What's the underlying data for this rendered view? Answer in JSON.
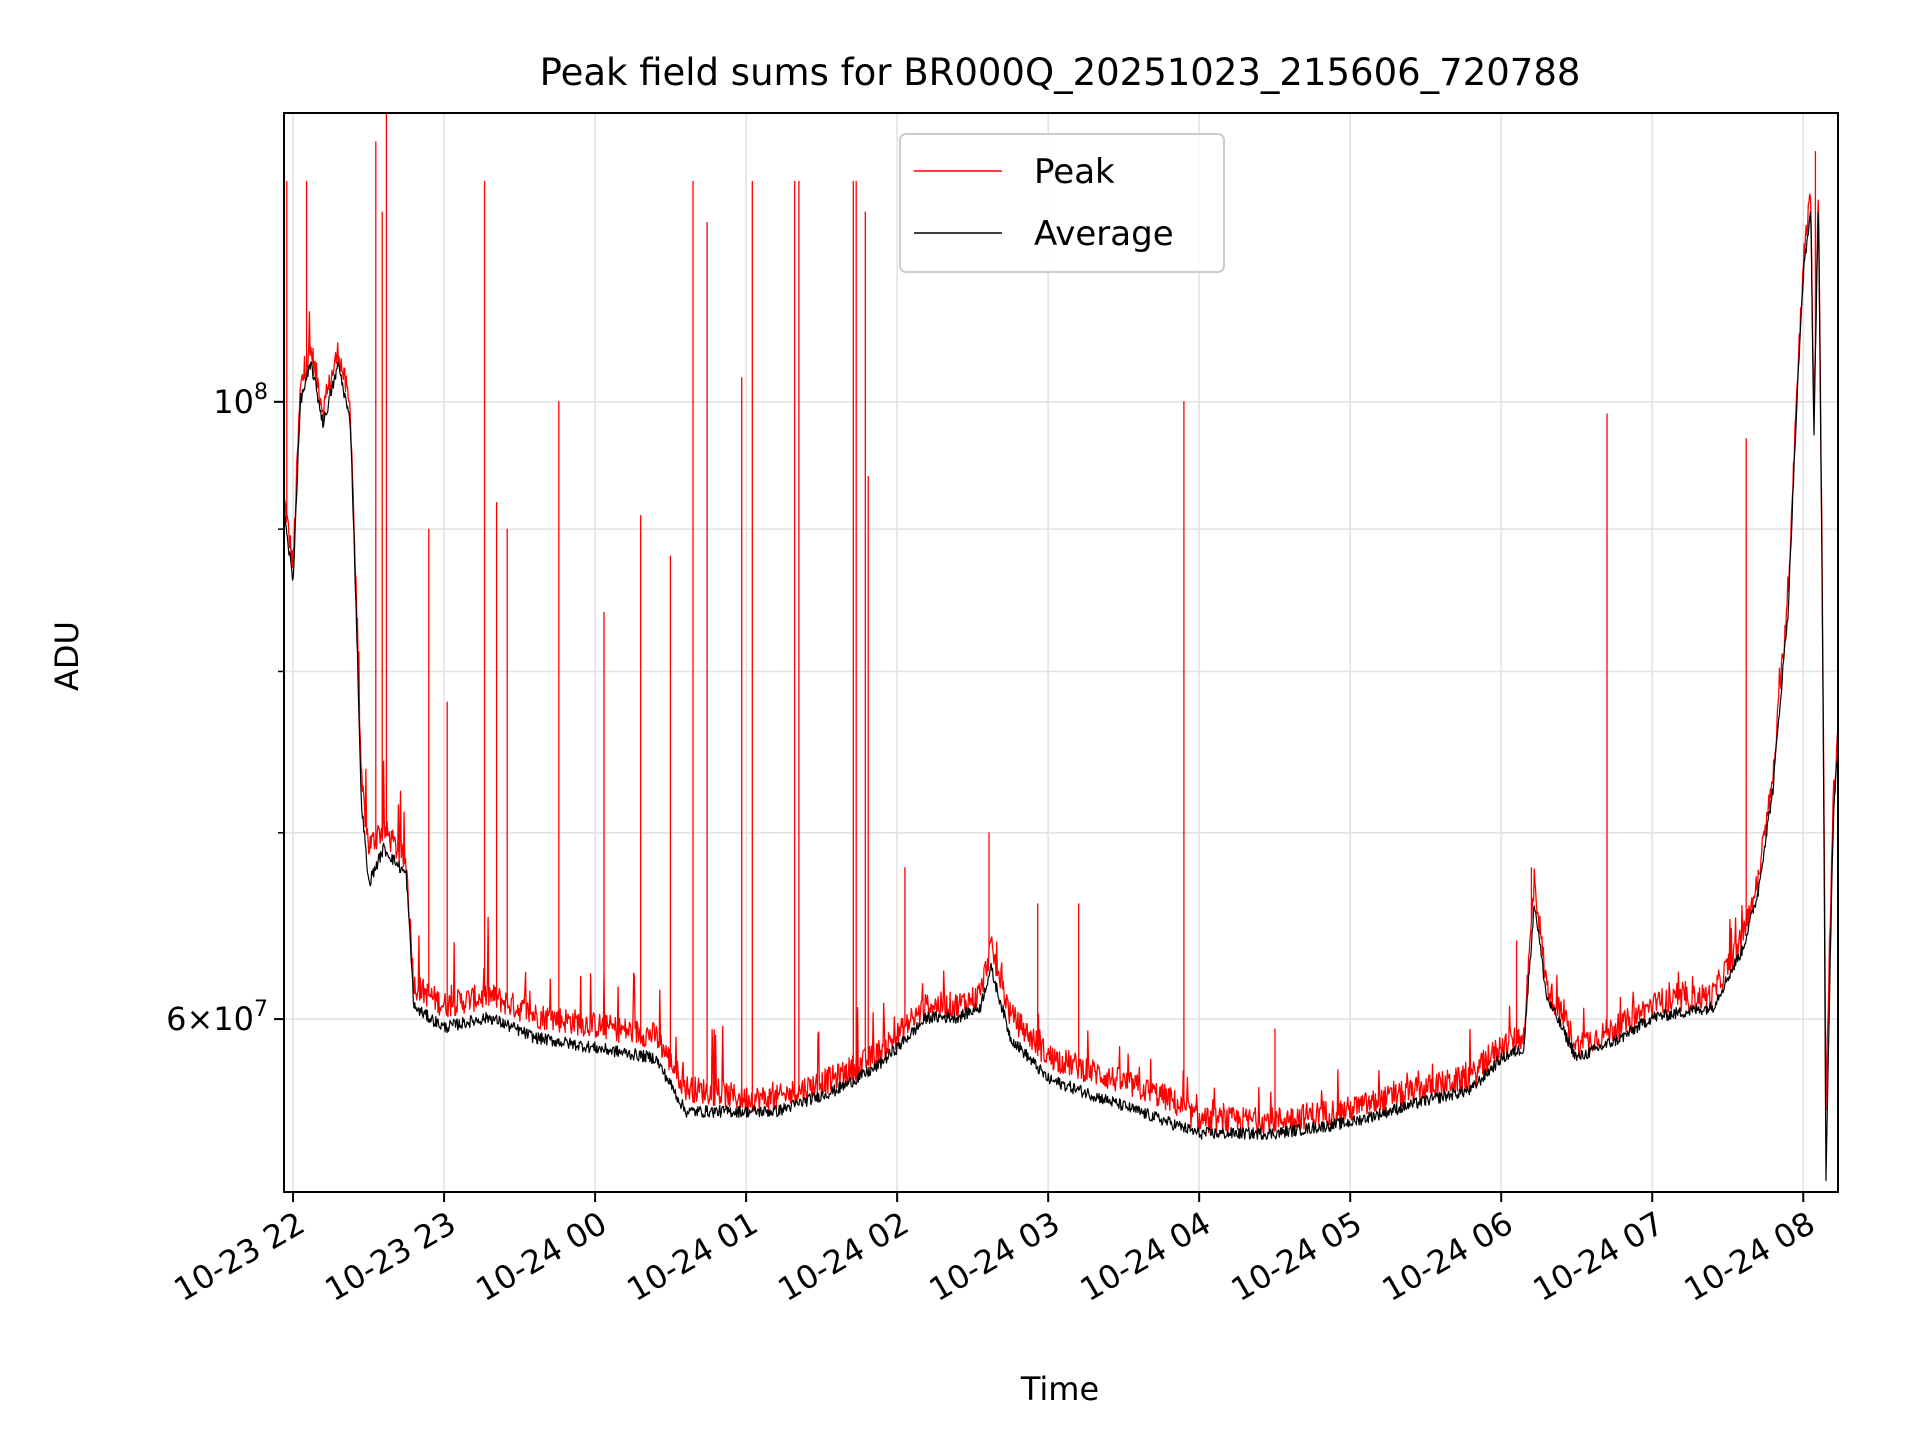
{
  "chart_data": {
    "type": "line",
    "title": "Peak field sums for BR000Q_20251023_215606_720788",
    "xlabel": "Time",
    "ylabel": "ADU",
    "yscale": "log",
    "ylim": [
      52000000,
      127000000
    ],
    "xlim_hours_from_2025_10_23_21_00": [
      0.94,
      11.23
    ],
    "grid": true,
    "legend_position": "upper center",
    "x_ticks": [
      {
        "hours": 1,
        "label": "10-23 22"
      },
      {
        "hours": 2,
        "label": "10-23 23"
      },
      {
        "hours": 3,
        "label": "10-24 00"
      },
      {
        "hours": 4,
        "label": "10-24 01"
      },
      {
        "hours": 5,
        "label": "10-24 02"
      },
      {
        "hours": 6,
        "label": "10-24 03"
      },
      {
        "hours": 7,
        "label": "10-24 04"
      },
      {
        "hours": 8,
        "label": "10-24 05"
      },
      {
        "hours": 9,
        "label": "10-24 06"
      },
      {
        "hours": 10,
        "label": "10-24 07"
      },
      {
        "hours": 11,
        "label": "10-24 08"
      }
    ],
    "y_ticks": [
      {
        "value": 60000000,
        "base": "6",
        "sup": "7",
        "times": "×",
        "power": "10"
      },
      {
        "value": 100000000,
        "base": "",
        "sup": "8",
        "times": "",
        "power": "10"
      }
    ],
    "y_minor_ticks": [
      70000000,
      80000000,
      90000000
    ],
    "series": [
      {
        "name": "Peak",
        "color": "#ff0000",
        "baseline": [
          [
            0.94,
            92000000
          ],
          [
            1.0,
            87000000
          ],
          [
            1.05,
            101000000
          ],
          [
            1.12,
            104000000
          ],
          [
            1.2,
            99000000
          ],
          [
            1.3,
            104000000
          ],
          [
            1.38,
            99000000
          ],
          [
            1.45,
            73000000
          ],
          [
            1.5,
            69000000
          ],
          [
            1.6,
            70000000
          ],
          [
            1.75,
            68000000
          ],
          [
            1.8,
            61500000
          ],
          [
            2.0,
            60500000
          ],
          [
            2.3,
            61000000
          ],
          [
            2.6,
            60000000
          ],
          [
            3.0,
            59500000
          ],
          [
            3.4,
            59000000
          ],
          [
            3.6,
            56500000
          ],
          [
            4.0,
            56000000
          ],
          [
            4.2,
            56000000
          ],
          [
            4.6,
            57000000
          ],
          [
            4.85,
            58000000
          ],
          [
            5.0,
            59000000
          ],
          [
            5.2,
            60500000
          ],
          [
            5.4,
            60500000
          ],
          [
            5.55,
            61000000
          ],
          [
            5.62,
            63500000
          ],
          [
            5.75,
            60000000
          ],
          [
            6.0,
            58000000
          ],
          [
            6.4,
            57000000
          ],
          [
            6.8,
            56000000
          ],
          [
            7.0,
            55000000
          ],
          [
            7.5,
            55000000
          ],
          [
            8.0,
            55500000
          ],
          [
            8.5,
            56500000
          ],
          [
            8.8,
            57000000
          ],
          [
            9.0,
            58500000
          ],
          [
            9.15,
            59000000
          ],
          [
            9.22,
            67000000
          ],
          [
            9.3,
            61500000
          ],
          [
            9.5,
            58500000
          ],
          [
            9.8,
            59500000
          ],
          [
            10.0,
            60500000
          ],
          [
            10.4,
            61000000
          ],
          [
            10.5,
            62500000
          ],
          [
            10.6,
            64000000
          ],
          [
            10.7,
            67000000
          ],
          [
            10.8,
            73000000
          ],
          [
            10.9,
            85000000
          ],
          [
            11.0,
            112000000
          ],
          [
            11.05,
            118000000
          ],
          [
            11.07,
            98000000
          ],
          [
            11.1,
            119000000
          ],
          [
            11.15,
            55000000
          ],
          [
            11.2,
            72000000
          ],
          [
            11.23,
            76000000
          ]
        ],
        "spikes": [
          [
            0.96,
            120000000
          ],
          [
            1.09,
            120000000
          ],
          [
            1.55,
            124000000
          ],
          [
            1.62,
            127000000
          ],
          [
            1.59,
            117000000
          ],
          [
            1.9,
            90000000
          ],
          [
            2.02,
            78000000
          ],
          [
            2.27,
            120000000
          ],
          [
            2.35,
            92000000
          ],
          [
            2.42,
            90000000
          ],
          [
            2.76,
            100000000
          ],
          [
            3.06,
            84000000
          ],
          [
            3.3,
            91000000
          ],
          [
            3.5,
            88000000
          ],
          [
            3.65,
            120000000
          ],
          [
            3.74,
            116000000
          ],
          [
            3.97,
            102000000
          ],
          [
            4.04,
            120000000
          ],
          [
            4.32,
            120000000
          ],
          [
            4.35,
            120000000
          ],
          [
            4.71,
            120000000
          ],
          [
            4.73,
            120000000
          ],
          [
            4.79,
            117000000
          ],
          [
            4.81,
            94000000
          ],
          [
            5.05,
            68000000
          ],
          [
            5.61,
            70000000
          ],
          [
            5.93,
            66000000
          ],
          [
            6.2,
            66000000
          ],
          [
            6.9,
            100000000
          ],
          [
            7.5,
            59500000
          ],
          [
            9.1,
            64000000
          ],
          [
            9.2,
            68000000
          ],
          [
            9.7,
            99000000
          ],
          [
            10.62,
            97000000
          ],
          [
            11.08,
            123000000
          ]
        ]
      },
      {
        "name": "Average",
        "color": "#000000",
        "baseline": [
          [
            0.94,
            91000000
          ],
          [
            1.0,
            86000000
          ],
          [
            1.05,
            100000000
          ],
          [
            1.12,
            103000000
          ],
          [
            1.2,
            98000000
          ],
          [
            1.3,
            103000000
          ],
          [
            1.38,
            98000000
          ],
          [
            1.45,
            72000000
          ],
          [
            1.5,
            67000000
          ],
          [
            1.6,
            69000000
          ],
          [
            1.75,
            67500000
          ],
          [
            1.8,
            60500000
          ],
          [
            2.0,
            59500000
          ],
          [
            2.3,
            60000000
          ],
          [
            2.6,
            59000000
          ],
          [
            3.0,
            58500000
          ],
          [
            3.4,
            58000000
          ],
          [
            3.6,
            55500000
          ],
          [
            4.0,
            55500000
          ],
          [
            4.2,
            55500000
          ],
          [
            4.6,
            56500000
          ],
          [
            4.85,
            57500000
          ],
          [
            5.0,
            58500000
          ],
          [
            5.2,
            60000000
          ],
          [
            5.4,
            60000000
          ],
          [
            5.55,
            60500000
          ],
          [
            5.62,
            62500000
          ],
          [
            5.75,
            59000000
          ],
          [
            6.0,
            57000000
          ],
          [
            6.4,
            56000000
          ],
          [
            6.8,
            55000000
          ],
          [
            7.0,
            54500000
          ],
          [
            7.5,
            54500000
          ],
          [
            8.0,
            55000000
          ],
          [
            8.5,
            56000000
          ],
          [
            8.8,
            56500000
          ],
          [
            9.0,
            58000000
          ],
          [
            9.15,
            58500000
          ],
          [
            9.22,
            66000000
          ],
          [
            9.3,
            61000000
          ],
          [
            9.5,
            58000000
          ],
          [
            9.8,
            59000000
          ],
          [
            10.0,
            60000000
          ],
          [
            10.4,
            60500000
          ],
          [
            10.5,
            62000000
          ],
          [
            10.6,
            63500000
          ],
          [
            10.7,
            66500000
          ],
          [
            10.8,
            72500000
          ],
          [
            10.9,
            84000000
          ],
          [
            11.0,
            111000000
          ],
          [
            11.05,
            117000000
          ],
          [
            11.07,
            96000000
          ],
          [
            11.1,
            118000000
          ],
          [
            11.15,
            52000000
          ],
          [
            11.2,
            71000000
          ],
          [
            11.23,
            75000000
          ]
        ],
        "spikes": []
      }
    ]
  }
}
